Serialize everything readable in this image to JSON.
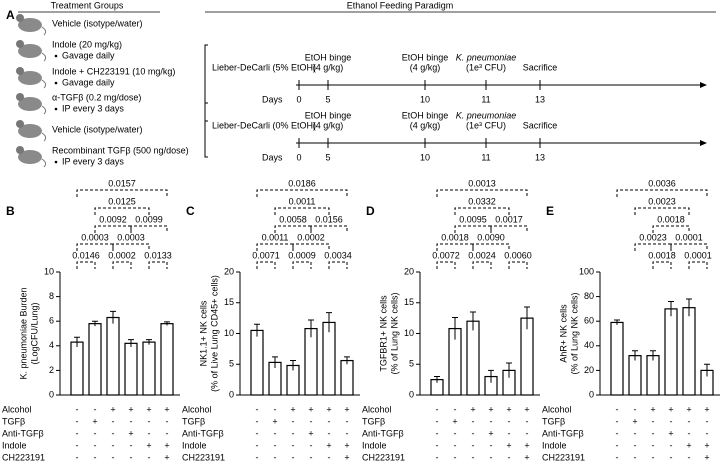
{
  "panel_a": {
    "letter": "A",
    "groups_title": "Treatment Groups",
    "groups": [
      {
        "label": "Vehicle (isotype/water)"
      },
      {
        "label": "Indole (20 mg/kg)",
        "note": "Gavage daily"
      },
      {
        "label": "Indole + CH223191 (10 mg/kg)",
        "note": "Gavage daily"
      },
      {
        "label": "α-TGFβ (0.2 mg/dose)",
        "note": "IP every 3 days"
      },
      {
        "label": "Vehicle (isotype/water)"
      },
      {
        "label": "Recombinant TGFβ (500 ng/dose)",
        "note": "IP every 3 days"
      }
    ],
    "paradigm_title": "Ethanol Feeding Paradigm",
    "timelines": [
      {
        "diet": "Lieber-DeCarli (5% EtOH)",
        "days_label": "Days",
        "events": [
          {
            "day": "0"
          },
          {
            "day": "5",
            "label": [
              "EtOH binge",
              "(4 g/kg)"
            ]
          },
          {
            "day": "10",
            "label": [
              "EtOH binge",
              "(4 g/kg)"
            ]
          },
          {
            "day": "11",
            "label": [
              "K. pneumoniae",
              "(1e³ CFU)"
            ]
          },
          {
            "day": "13",
            "label": [
              "Sacrifice"
            ]
          }
        ]
      },
      {
        "diet": "Lieber-DeCarli (0% EtOH)",
        "days_label": "Days",
        "events": [
          {
            "day": "0"
          },
          {
            "day": "5",
            "label": [
              "EtOH binge",
              "(4 g/kg)"
            ]
          },
          {
            "day": "10",
            "label": [
              "EtOH binge",
              "(4 g/kg)"
            ]
          },
          {
            "day": "11",
            "label": [
              "K. pneumoniae",
              "(1e³ CFU)"
            ]
          },
          {
            "day": "13",
            "label": [
              "Sacrifice"
            ]
          }
        ]
      }
    ]
  },
  "chart_data": [
    {
      "type": "bar",
      "panel": "B",
      "ylabel": [
        "K. pneumoniae Burden",
        "(LogCFU/Lung)"
      ],
      "values": [
        4.3,
        5.8,
        6.3,
        4.2,
        4.3,
        5.8
      ],
      "errors": [
        0.4,
        0.2,
        0.5,
        0.3,
        0.2,
        0.15
      ],
      "color": "#ffffff",
      "ylim": [
        0,
        10
      ],
      "yticks": [
        0,
        2,
        4,
        6,
        8,
        10
      ],
      "annotations": [
        "0.0146",
        "0.0002",
        "0.0133",
        "0.0003",
        "0.0003",
        "0.0092",
        "0.0099",
        "0.0125",
        "0.0157"
      ],
      "conditions": [
        {
          "name": "Alcohol",
          "signs": [
            "-",
            "-",
            "+",
            "+",
            "+",
            "+"
          ]
        },
        {
          "name": "TGFβ",
          "signs": [
            "-",
            "+",
            "-",
            "-",
            "-",
            "-"
          ]
        },
        {
          "name": "Anti-TGFβ",
          "signs": [
            "-",
            "-",
            "-",
            "+",
            "-",
            "-"
          ]
        },
        {
          "name": "Indole",
          "signs": [
            "-",
            "-",
            "-",
            "-",
            "+",
            "+"
          ]
        },
        {
          "name": "CH223191",
          "signs": [
            "-",
            "-",
            "-",
            "-",
            "-",
            "+"
          ]
        }
      ]
    },
    {
      "type": "bar",
      "panel": "C",
      "ylabel": [
        "NK1.1+ NK cells",
        "(% of Live Lung CD45+ cells)"
      ],
      "values": [
        10.5,
        5.3,
        4.8,
        10.8,
        11.8,
        5.6
      ],
      "errors": [
        1,
        0.9,
        0.8,
        1.4,
        1.6,
        0.6
      ],
      "color": "#ffffff",
      "ylim": [
        0,
        20
      ],
      "yticks": [
        0,
        5,
        10,
        15,
        20
      ],
      "annotations": [
        "0.0071",
        "0.0009",
        "0.0034",
        "0.0011",
        "0.0002",
        "0.0058",
        "0.0156",
        "0.0011",
        "0.0186"
      ],
      "conditions": [
        {
          "name": "Alcohol",
          "signs": [
            "-",
            "-",
            "+",
            "+",
            "+",
            "+"
          ]
        },
        {
          "name": "TGFβ",
          "signs": [
            "-",
            "+",
            "-",
            "-",
            "-",
            "-"
          ]
        },
        {
          "name": "Anti-TGFβ",
          "signs": [
            "-",
            "-",
            "-",
            "+",
            "-",
            "-"
          ]
        },
        {
          "name": "Indole",
          "signs": [
            "-",
            "-",
            "-",
            "-",
            "+",
            "+"
          ]
        },
        {
          "name": "CH223191",
          "signs": [
            "-",
            "-",
            "-",
            "-",
            "-",
            "+"
          ]
        }
      ]
    },
    {
      "type": "bar",
      "panel": "D",
      "ylabel": [
        "TGFBR1+ NK cells",
        "(% of Lung NK cells)"
      ],
      "values": [
        2.5,
        10.8,
        12,
        3,
        4,
        12.5
      ],
      "errors": [
        0.5,
        1.8,
        1.5,
        1,
        1.2,
        1.8
      ],
      "color": "#ffffff",
      "ylim": [
        0,
        20
      ],
      "yticks": [
        0,
        5,
        10,
        15,
        20
      ],
      "annotations": [
        "0.0072",
        "0.0024",
        "0.0060",
        "0.0018",
        "0.0090",
        "0.0095",
        "0.0017",
        "0.0332",
        "0.0013"
      ],
      "conditions": [
        {
          "name": "Alcohol",
          "signs": [
            "-",
            "-",
            "+",
            "+",
            "+",
            "+"
          ]
        },
        {
          "name": "TGFβ",
          "signs": [
            "-",
            "+",
            "-",
            "-",
            "-",
            "-"
          ]
        },
        {
          "name": "Anti-TGFβ",
          "signs": [
            "-",
            "-",
            "-",
            "+",
            "-",
            "-"
          ]
        },
        {
          "name": "Indole",
          "signs": [
            "-",
            "-",
            "-",
            "-",
            "+",
            "+"
          ]
        },
        {
          "name": "CH223191",
          "signs": [
            "-",
            "-",
            "-",
            "-",
            "-",
            "+"
          ]
        }
      ]
    },
    {
      "type": "bar",
      "panel": "E",
      "ylabel": [
        "AhR+ NK cells",
        "(% of Lung NK cells)"
      ],
      "values": [
        59,
        32,
        32,
        70,
        71,
        20
      ],
      "errors": [
        2,
        4,
        4,
        6,
        7,
        5
      ],
      "color": "#ffffff",
      "ylim": [
        0,
        100
      ],
      "yticks": [
        0,
        20,
        40,
        60,
        80,
        100
      ],
      "annotations": [
        "0.0018",
        "0.0001",
        "0.0023",
        "0.0001",
        "0.0018",
        "0.0023",
        "0.0036"
      ],
      "conditions": [
        {
          "name": "Alcohol",
          "signs": [
            "-",
            "-",
            "+",
            "+",
            "+",
            "+"
          ]
        },
        {
          "name": "TGFβ",
          "signs": [
            "-",
            "+",
            "-",
            "-",
            "-",
            "-"
          ]
        },
        {
          "name": "Anti-TGFβ",
          "signs": [
            "-",
            "-",
            "-",
            "+",
            "-",
            "-"
          ]
        },
        {
          "name": "Indole",
          "signs": [
            "-",
            "-",
            "-",
            "-",
            "+",
            "+"
          ]
        },
        {
          "name": "CH223191",
          "signs": [
            "-",
            "-",
            "-",
            "-",
            "-",
            "+"
          ]
        }
      ]
    }
  ]
}
